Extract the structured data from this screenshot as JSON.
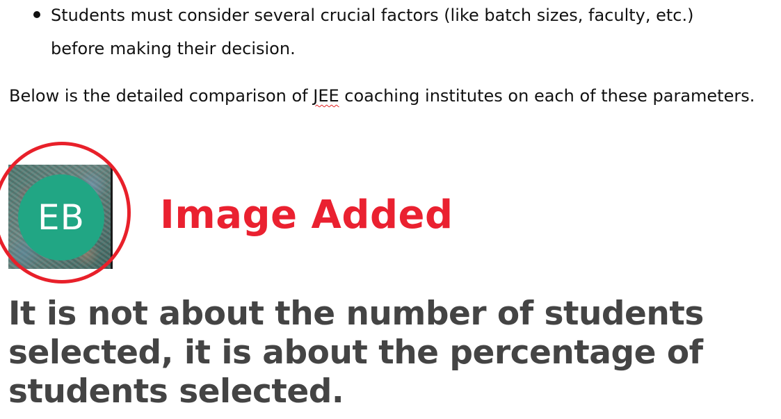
{
  "bullets": [
    {
      "line1": "Students must consider several crucial factors (like batch sizes, faculty, etc.)",
      "line2": "before making their decision."
    }
  ],
  "paragraph": {
    "before": "Below is the detailed comparison of ",
    "flagged_word": "JEE",
    "after": " coaching institutes on each of these parameters."
  },
  "avatar": {
    "initials": "EB",
    "color": "#21a684"
  },
  "annotation": {
    "label": "Image Added",
    "color": "#ea2130"
  },
  "quote": {
    "line1": "It is not about the number of students",
    "line2": "selected, it is about the percentage of",
    "line3": "students selected."
  }
}
